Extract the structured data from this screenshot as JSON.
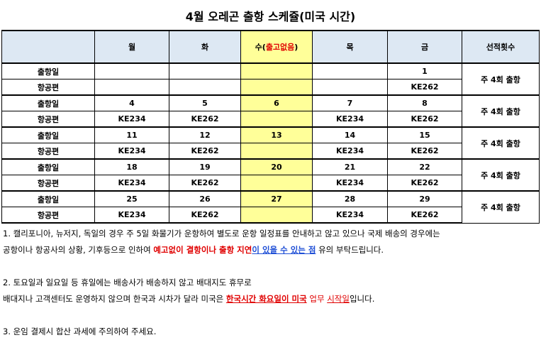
{
  "title": "4월 오레곤 출항 스케쥴(미국 시간)",
  "headers": {
    "mon": "월",
    "tue": "화",
    "wed_prefix": "수(",
    "wed_highlight": "출고없음",
    "wed_suffix": ")",
    "thu": "목",
    "fri": "금",
    "freq": "선적횟수"
  },
  "row_labels": {
    "date": "출항일",
    "flight": "항공편"
  },
  "weeks": [
    {
      "dates": [
        "",
        "",
        "",
        "",
        "1"
      ],
      "flights": [
        "",
        "",
        "",
        "",
        "KE262"
      ],
      "freq": "주 4회 출항"
    },
    {
      "dates": [
        "4",
        "5",
        "6",
        "7",
        "8"
      ],
      "flights": [
        "KE234",
        "KE262",
        "",
        "KE234",
        "KE262"
      ],
      "freq": "주 4회 출항"
    },
    {
      "dates": [
        "11",
        "12",
        "13",
        "14",
        "15"
      ],
      "flights": [
        "KE234",
        "KE262",
        "",
        "KE234",
        "KE262"
      ],
      "freq": "주 4회 출항"
    },
    {
      "dates": [
        "18",
        "19",
        "20",
        "21",
        "22"
      ],
      "flights": [
        "KE234",
        "KE262",
        "",
        "KE234",
        "KE262"
      ],
      "freq": "주 4회 출항"
    },
    {
      "dates": [
        "25",
        "26",
        "27",
        "28",
        "29"
      ],
      "flights": [
        "KE234",
        "KE262",
        "",
        "KE234",
        "KE262"
      ],
      "freq": "주 4회 출항"
    }
  ],
  "notes": {
    "n1_line1": "1. 캘리포니아, 뉴저지, 독일의 경우 주 5일 화물기가 운항하여 별도로 운항 일정표를 안내하고 않고 있으나 국제 배송의 경우에는",
    "n1_line2_a": "공항이나 항공사의 상황, 기후등으로 인하여 ",
    "n1_line2_b": "예고없이 결항이나 출항 지연",
    "n1_line2_c": "이 있을 수 있는 점",
    "n1_line2_d": " 유의 부탁드립니다.",
    "n2_line1": "2. 토요일과 일요일 등 휴일에는 배송사가 배송하지 않고 배대지도 휴무로",
    "n2_line2_a": "배대지나 고객센터도 운영하지 않으며 한국과 시차가 달라 미국은 ",
    "n2_line2_b": "한국시간 화요일이 미국",
    "n2_line2_c": " 업무 ",
    "n2_line2_d": "시작일",
    "n2_line2_e": "입니다.",
    "n3": "3. 운임 결제시 합산 과세에 주의하여 주세요."
  }
}
